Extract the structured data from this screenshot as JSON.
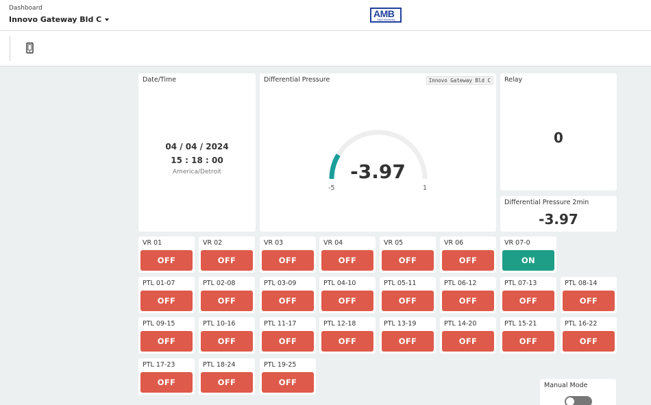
{
  "header": {
    "breadcrumb": "Dashboard",
    "title": "Innovo Gateway Bld C",
    "logo_text": "AMB",
    "logo_sub": "Vapor Monitoring"
  },
  "toolbar": {
    "icons": [
      "mobile-phone-icon"
    ]
  },
  "datetime": {
    "label": "Date/Time",
    "date": "04 / 04 / 2024",
    "time": "15 : 18 : 00",
    "timezone": "America/Detroit"
  },
  "pressure": {
    "label": "Differential Pressure",
    "badge": "Innovo Gateway Bld C",
    "value": "-3.97",
    "min": "-5",
    "max": "1",
    "value_num": -3.97,
    "min_num": -5,
    "max_num": 1
  },
  "relay": {
    "label": "Relay",
    "value": "0"
  },
  "pressure2": {
    "label": "Differential Pressure 2min",
    "value": "-3.97"
  },
  "switches": [
    {
      "label": "VR 01",
      "state": "OFF"
    },
    {
      "label": "VR 02",
      "state": "OFF"
    },
    {
      "label": "VR 03",
      "state": "OFF"
    },
    {
      "label": "VR 04",
      "state": "OFF"
    },
    {
      "label": "VR 05",
      "state": "OFF"
    },
    {
      "label": "VR 06",
      "state": "OFF"
    },
    {
      "label": "VR 07-0",
      "state": "ON"
    },
    {
      "label": "PTL 01-07",
      "state": "OFF"
    },
    {
      "label": "PTL 02-08",
      "state": "OFF"
    },
    {
      "label": "PTL 03-09",
      "state": "OFF"
    },
    {
      "label": "PTL 04-10",
      "state": "OFF"
    },
    {
      "label": "PTL 05-11",
      "state": "OFF"
    },
    {
      "label": "PTL 06-12",
      "state": "OFF"
    },
    {
      "label": "PTL 07-13",
      "state": "OFF"
    },
    {
      "label": "PTL 08-14",
      "state": "OFF"
    },
    {
      "label": "PTL 09-15",
      "state": "OFF"
    },
    {
      "label": "PTL 10-16",
      "state": "OFF"
    },
    {
      "label": "PTL 11-17",
      "state": "OFF"
    },
    {
      "label": "PTL 12-18",
      "state": "OFF"
    },
    {
      "label": "PTL 13-19",
      "state": "OFF"
    },
    {
      "label": "PTL 14-20",
      "state": "OFF"
    },
    {
      "label": "PTL 15-21",
      "state": "OFF"
    },
    {
      "label": "PTL 16-22",
      "state": "OFF"
    },
    {
      "label": "PTL 17-23",
      "state": "OFF"
    },
    {
      "label": "PTL 18-24",
      "state": "OFF"
    },
    {
      "label": "PTL 19-25",
      "state": "OFF"
    }
  ],
  "manual_mode": {
    "label": "Manual Mode",
    "enabled": false
  },
  "colors": {
    "off": "#de5a4a",
    "on": "#1e9e86",
    "gauge_fill": "#1a9e9a",
    "gauge_track": "#eeeeee"
  }
}
